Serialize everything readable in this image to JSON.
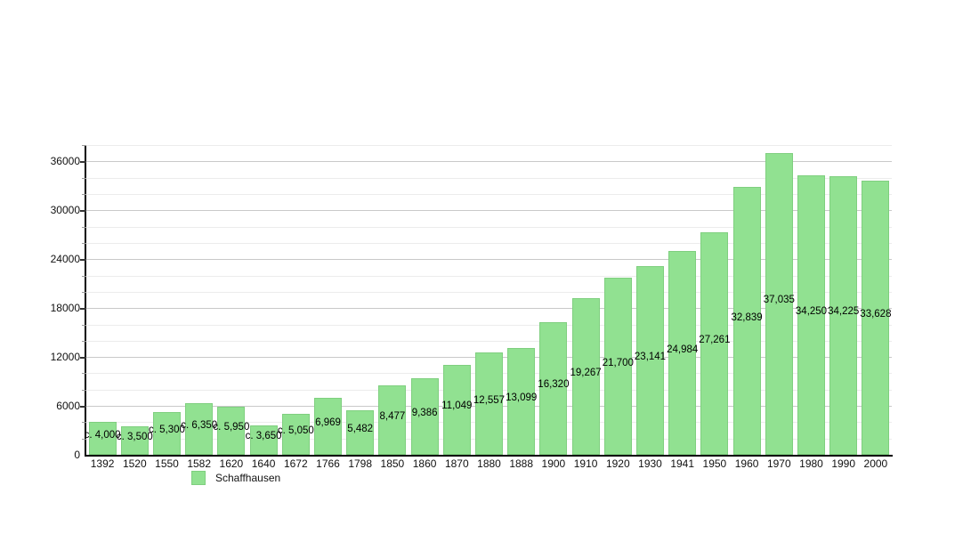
{
  "chart_data": {
    "type": "bar",
    "title": "",
    "xlabel": "",
    "ylabel": "",
    "grid": true,
    "legend_position": "bottom",
    "ylim": [
      0,
      38000
    ],
    "yticks": [
      0,
      6000,
      12000,
      18000,
      24000,
      30000,
      36000
    ],
    "minor_tick_step": 2000,
    "categories": [
      "1392",
      "1520",
      "1550",
      "1582",
      "1620",
      "1640",
      "1672",
      "1766",
      "1798",
      "1850",
      "1860",
      "1870",
      "1880",
      "1888",
      "1900",
      "1910",
      "1920",
      "1930",
      "1941",
      "1950",
      "1960",
      "1970",
      "1980",
      "1990",
      "2000"
    ],
    "series": [
      {
        "name": "Schaffhausen",
        "color": "#91e191",
        "border_color": "#7fcf7f",
        "values": [
          4000,
          3500,
          5300,
          6350,
          5950,
          3650,
          5050,
          6969,
          5482,
          8477,
          9386,
          11049,
          12557,
          13099,
          16320,
          19267,
          21700,
          23141,
          24984,
          27261,
          32839,
          37035,
          34250,
          34225,
          33628
        ],
        "value_labels": [
          "c. 4,000",
          "c. 3,500",
          "c. 5,300",
          "c. 6,350",
          "c. 5,950",
          "c. 3,650",
          "c. 5,050",
          "6,969",
          "5,482",
          "8,477",
          "9,386",
          "11,049",
          "12,557",
          "13,099",
          "16,320",
          "19,267",
          "21,700",
          "23,141",
          "24,984",
          "27,261",
          "32,839",
          "37,035",
          "34,250",
          "34,225",
          "33,628"
        ]
      }
    ]
  }
}
